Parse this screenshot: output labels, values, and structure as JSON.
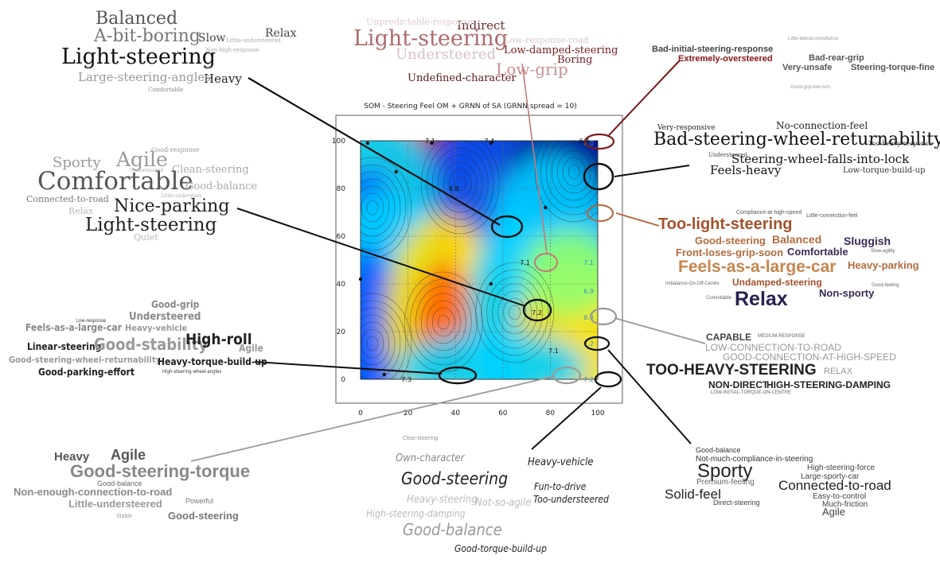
{
  "chart_title": "SOM - Steering Feel OM + GRNN of SA (GRNN spread = 10)",
  "chart_data": {
    "type": "heatmap",
    "title": "SOM - Steering Feel OM + GRNN of SA (GRNN spread = 10)",
    "xlabel": "",
    "ylabel": "",
    "xlim": [
      0,
      100
    ],
    "ylim": [
      0,
      100
    ],
    "x_ticks": [
      "0",
      "20",
      "40",
      "60",
      "80",
      "100"
    ],
    "y_ticks": [
      "0",
      "20",
      "40",
      "60",
      "80",
      "100"
    ],
    "grid": true,
    "colormap": [
      "#00008f",
      "#0050ff",
      "#00d0ff",
      "#8fff70",
      "#ffe000",
      "#ff6000",
      "#a00000"
    ],
    "peaks": [
      {
        "x": 42,
        "y": 82,
        "level": "high",
        "label": "8.8"
      },
      {
        "x": 35,
        "y": 24,
        "level": "high",
        "label": ""
      },
      {
        "x": 90,
        "y": 87,
        "level": "low",
        "label": "5.9"
      },
      {
        "x": 5,
        "y": 15,
        "level": "low",
        "label": ""
      },
      {
        "x": 5,
        "y": 72,
        "level": "low",
        "label": ""
      },
      {
        "x": 65,
        "y": 28,
        "level": "low",
        "label": ""
      }
    ],
    "edge_labels": [
      {
        "x": 99,
        "y": 99,
        "text": "6.0"
      },
      {
        "x": 99,
        "y": 86,
        "text": "5.9"
      },
      {
        "x": 99,
        "y": 70,
        "text": "5.8"
      },
      {
        "x": 99,
        "y": 49,
        "text": "7.1"
      },
      {
        "x": 99,
        "y": 37,
        "text": "6.9"
      },
      {
        "x": 99,
        "y": 26,
        "text": "6.8"
      },
      {
        "x": 99,
        "y": 15,
        "text": "7.2"
      },
      {
        "x": 99,
        "y": 0,
        "text": "7.2"
      },
      {
        "x": 30,
        "y": 100,
        "text": "7.1"
      },
      {
        "x": 55,
        "y": 100,
        "text": "7.4"
      },
      {
        "x": 95,
        "y": 100,
        "text": "6.4"
      },
      {
        "x": 40,
        "y": 80,
        "text": "8.8"
      },
      {
        "x": 70,
        "y": 49,
        "text": "7.1"
      },
      {
        "x": 75,
        "y": 28,
        "text": "7.2"
      },
      {
        "x": 20,
        "y": 0,
        "text": "7.3"
      },
      {
        "x": 82,
        "y": 12,
        "text": "7.1"
      }
    ]
  },
  "annotation_colors": {
    "black": "#111111",
    "grey": "#9a9a9a",
    "dark_red": "#7a1c1c",
    "rose": "#c47a7a",
    "brown": "#b0653a"
  },
  "clouds": {
    "top_left": {
      "words": [
        "Balanced",
        "A-bit-boring",
        "Slow",
        "Relax",
        "Light-steering",
        "Heavy",
        "Large-steering-angles",
        "Non-high-response",
        "Little-understeered",
        "Comfortable"
      ]
    },
    "top_center": {
      "words": [
        "Light-steering",
        "Indirect",
        "Understeered",
        "Low-grip",
        "Low-damped-steering",
        "Boring",
        "Undefined-character",
        "Unpredictable-response",
        "Low-response-road"
      ]
    },
    "top_right": {
      "words": [
        "Bad-initial-steering-response",
        "Extremely-oversteered",
        "Bad-rear-grip",
        "Very-unsafe",
        "Steering-torque-fine",
        "Little-lateral-compliance",
        "Good-grip-low-turn"
      ]
    },
    "right_upper": {
      "words": [
        "Very-responsive",
        "No-connection-feel",
        "Bad-steering-wheel-returnability",
        "Steering-wheel-falls-into-lock",
        "Feels-heavy",
        "Low-torque-build-up",
        "Too-heavy-response",
        "Understeered"
      ]
    },
    "right_middle": {
      "words": [
        "Compliance-at-high-speed",
        "Little-connection-feel",
        "Too-light-steering",
        "Good-steering",
        "Balanced",
        "Sluggish",
        "Front-loses-grip-soon",
        "Comfortable",
        "Feels-as-a-large-car",
        "Heavy-parking",
        "Undamped-steering",
        "Non-sporty",
        "Relax",
        "Good-feeling",
        "Imbalance-On-Off-Centre",
        "Slow-agility",
        "Controllable"
      ]
    },
    "left_upper": {
      "words": [
        "Good-response",
        "Sporty",
        "Agile",
        "Clean-steering",
        "Comfortable",
        "Good-balance",
        "Connected-to-road",
        "Nice-parking",
        "Light-steering",
        "Relax",
        "Quiet",
        "Little-understeer",
        "Understeered"
      ]
    },
    "left_lower": {
      "words": [
        "Good-grip",
        "Understeered",
        "Feels-as-a-large-car",
        "Heavy-vehicle",
        "Linear-steering",
        "Good-stability",
        "High-roll",
        "Agile",
        "Good-steering-wheel-returnability",
        "Heavy-torque-build-up",
        "Good-parking-effort",
        "High-steering-wheel-angles",
        "Low-response"
      ]
    },
    "right_lower": {
      "words": [
        "Capable",
        "Medium-response",
        "Low-connection-to-road",
        "Good-connection-at-high-speed",
        "Too-heavy-steering",
        "Relax",
        "Non-direct",
        "High-steering-damping",
        "Low-initial-torque-on-centre"
      ]
    },
    "bottom_left": {
      "words": [
        "Heavy",
        "Agile",
        "Good-steering-torque",
        "Good-balance",
        "Non-enough-connection-to-road",
        "Little-understeered",
        "Powerful",
        "Good-steering",
        "Stable"
      ]
    },
    "bottom_center": {
      "words": [
        "Clear-steering",
        "Own-character",
        "Heavy-vehicle",
        "Good-steering",
        "Fun-to-drive",
        "Heavy-steering",
        "Not-so-agile",
        "Too-understeered",
        "High-steering-damping",
        "Good-balance",
        "Good-torque-build-up"
      ]
    },
    "bottom_right": {
      "words": [
        "Good-balance",
        "Not-much-compliance-in-steering",
        "Sporty",
        "High-steering-force",
        "Large-sporty-car",
        "Premium-feeling",
        "Connected-to-road",
        "Solid-feel",
        "Direct-steering",
        "Easy-to-control",
        "Much-friction",
        "Agile"
      ]
    }
  }
}
